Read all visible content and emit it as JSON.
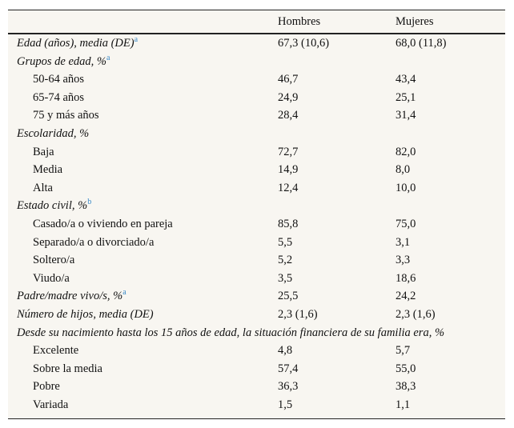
{
  "table": {
    "header": [
      "Hombres",
      "Mujeres"
    ],
    "rows": [
      {
        "label": "Edad (años), media (DE)",
        "sup": "a",
        "group": true,
        "cells": [
          "67,3 (10,6)",
          "68,0 (11,8)"
        ]
      },
      {
        "label": "Grupos de edad, %",
        "sup": "a",
        "group": true
      },
      {
        "label": "50-64 años",
        "cells": [
          "46,7",
          "43,4"
        ]
      },
      {
        "label": "65-74 años",
        "cells": [
          "24,9",
          "25,1"
        ]
      },
      {
        "label": "75 y más años",
        "cells": [
          "28,4",
          "31,4"
        ]
      },
      {
        "label": "Escolaridad, %",
        "group": true
      },
      {
        "label": "Baja",
        "cells": [
          "72,7",
          "82,0"
        ]
      },
      {
        "label": "Media",
        "cells": [
          "14,9",
          "8,0"
        ]
      },
      {
        "label": "Alta",
        "cells": [
          "12,4",
          "10,0"
        ]
      },
      {
        "label": "Estado civil, %",
        "sup": "b",
        "group": true
      },
      {
        "label": "Casado/a o viviendo en pareja",
        "cells": [
          "85,8",
          "75,0"
        ]
      },
      {
        "label": "Separado/a o divorciado/a",
        "cells": [
          "5,5",
          "3,1"
        ]
      },
      {
        "label": "Soltero/a",
        "cells": [
          "5,2",
          "3,3"
        ]
      },
      {
        "label": "Viudo/a",
        "cells": [
          "3,5",
          "18,6"
        ]
      },
      {
        "label": "Padre/madre vivo/s, %",
        "sup": "a",
        "group": true,
        "cells": [
          "25,5",
          "24,2"
        ]
      },
      {
        "label": "Número de hijos, media (DE)",
        "group": true,
        "cells": [
          "2,3 (1,6)",
          "2,3 (1,6)"
        ]
      },
      {
        "label": "Desde su nacimiento hasta los 15 años de edad, la situación financiera de su familia era, %",
        "group": true
      },
      {
        "label": "Excelente",
        "cells": [
          "4,8",
          "5,7"
        ]
      },
      {
        "label": "Sobre la media",
        "cells": [
          "57,4",
          "55,0"
        ]
      },
      {
        "label": "Pobre",
        "cells": [
          "36,3",
          "38,3"
        ]
      },
      {
        "label": "Variada",
        "cells": [
          "1,5",
          "1,1"
        ]
      }
    ]
  }
}
